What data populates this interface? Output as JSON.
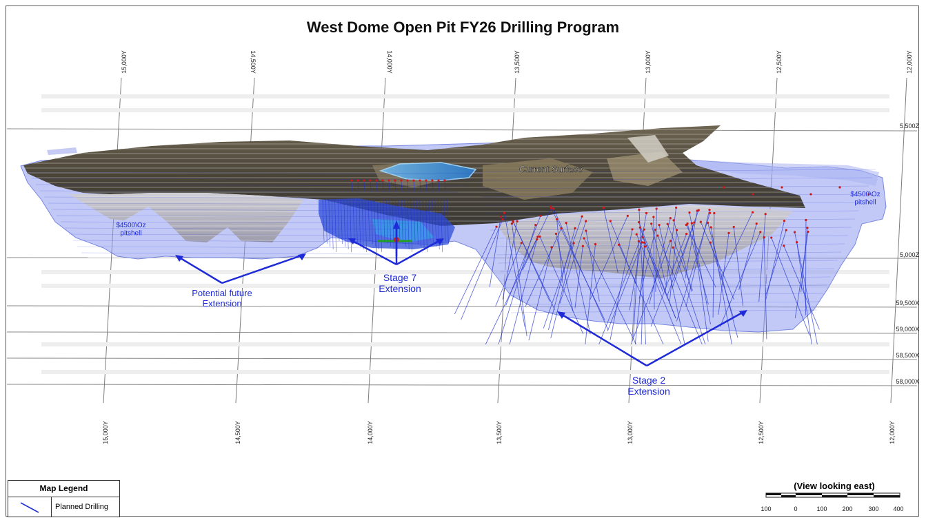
{
  "map": {
    "title": "West Dome Open Pit FY26 Drilling Program",
    "grid": {
      "y_labels_top": [
        "15,000Y",
        "14,500Y",
        "14,000Y",
        "13,500Y",
        "13,000Y",
        "12,500Y",
        "12,000Y"
      ],
      "y_labels_bottom": [
        "15,000Y",
        "14,500Y",
        "14,000Y",
        "13,500Y",
        "13,000Y",
        "12,500Y",
        "12,000Y"
      ],
      "z_labels": [
        "5,500Z",
        "5,000Z"
      ],
      "x_labels": [
        "59,500X",
        "59,000X",
        "58,500X",
        "58,000X"
      ]
    },
    "annotations": {
      "current_surface": "Current Surface",
      "pitshell_left": "$4500\\Oz\npitshell",
      "pitshell_right": "$4500\\Oz\npitshell",
      "potential_future": "Potential future\nExtension",
      "stage7": "Stage 7\nExtension",
      "stage2": "Stage  2\nExtension"
    },
    "legend": {
      "title": "Map Legend",
      "items": [
        {
          "symbol": "blue-line",
          "label": "Planned Drilling"
        }
      ]
    },
    "scale_bar": {
      "title": "(View looking east)",
      "labels": [
        "100",
        "0",
        "100",
        "200",
        "300",
        "400"
      ]
    },
    "colors": {
      "planned_drilling": "#2030d0",
      "pit_shell": "#8a96e8",
      "annotation_text": "#1e2ad8",
      "grid_line": "#888888",
      "drill_collar": "#d01818"
    }
  }
}
